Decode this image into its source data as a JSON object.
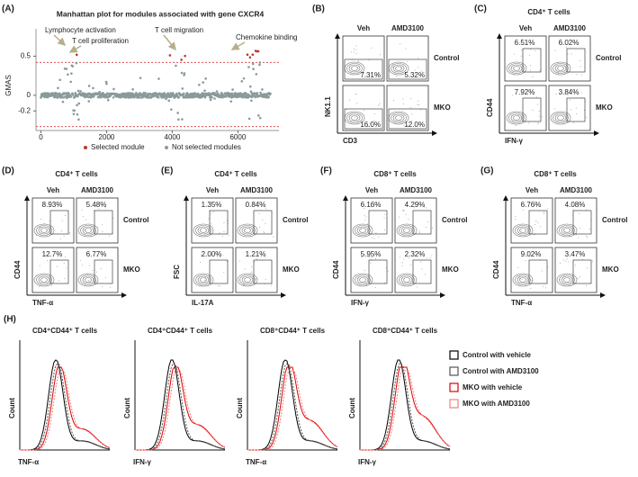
{
  "manhattan": {
    "label": "(A)",
    "title": "Manhattan plot for modules associated with gene CXCR4",
    "y_label": "GMAS",
    "xlim": [
      -150,
      7250
    ],
    "ylim": [
      -0.45,
      0.85
    ],
    "xticks": [
      0,
      2000,
      4000,
      6000
    ],
    "yticks": [
      0.5,
      0,
      -0.2
    ],
    "thresholds": [
      0.42,
      -0.4
    ],
    "annotations": [
      "Lymphocyte activation",
      "T cell proliferation",
      "T cell migration",
      "Chemokine binding"
    ],
    "legend": [
      {
        "name": "Selected module",
        "color": "#c0392b"
      },
      {
        "name": "Not selected modules",
        "color": "#8a9a9a"
      }
    ]
  },
  "flow_panels": [
    {
      "label": "(B)",
      "columns": [
        "Veh",
        "AMD3100"
      ],
      "rows": [
        "Control",
        "MKO"
      ],
      "y_label": "NK1.1",
      "x_label": "CD3",
      "percents": [
        "7.31%",
        "5.32%",
        "16.0%",
        "12.0%"
      ]
    },
    {
      "label": "(C)",
      "title": "CD4⁺ T cells",
      "columns": [
        "Veh",
        "AMD3100"
      ],
      "rows": [
        "Control",
        "MKO"
      ],
      "y_label": "CD44",
      "x_label": "IFN-γ",
      "percents": [
        "6.51%",
        "6.02%",
        "7.92%",
        "3.84%"
      ]
    },
    {
      "label": "(D)",
      "title": "CD4⁺ T cells",
      "columns": [
        "Veh",
        "AMD3100"
      ],
      "rows": [
        "Control",
        "MKO"
      ],
      "y_label": "CD44",
      "x_label": "TNF-α",
      "percents": [
        "8.93%",
        "5.48%",
        "12.7%",
        "6.77%"
      ]
    },
    {
      "label": "(E)",
      "title": "CD4⁺ T cells",
      "columns": [
        "Veh",
        "AMD3100"
      ],
      "rows": [
        "Control",
        "MKO"
      ],
      "y_label": "FSC",
      "x_label": "IL-17A",
      "percents": [
        "1.35%",
        "0.84%",
        "2.00%",
        "1.21%"
      ]
    },
    {
      "label": "(F)",
      "title": "CD8⁺ T cells",
      "columns": [
        "Veh",
        "AMD3100"
      ],
      "rows": [
        "Control",
        "MKO"
      ],
      "y_label": "CD44",
      "x_label": "IFN-γ",
      "percents": [
        "6.16%",
        "4.29%",
        "5.95%",
        "2.32%"
      ]
    },
    {
      "label": "(G)",
      "title": "CD8⁺ T cells",
      "columns": [
        "Veh",
        "AMD3100"
      ],
      "rows": [
        "Control",
        "MKO"
      ],
      "y_label": "CD44",
      "x_label": "TNF-α",
      "percents": [
        "6.76%",
        "4.08%",
        "9.02%",
        "3.47%"
      ]
    }
  ],
  "histograms": {
    "label": "(H)",
    "y_label": "Count",
    "plots": [
      {
        "title": "CD4⁺CD44⁺ T cells",
        "x_label": "TNF-α"
      },
      {
        "title": "CD4⁺CD44⁺ T cells",
        "x_label": "IFN-γ"
      },
      {
        "title": "CD8⁺CD44⁺ T cells",
        "x_label": "TNF-α"
      },
      {
        "title": "CD8⁺CD44⁺ T cells",
        "x_label": "IFN-γ"
      }
    ],
    "legend": [
      {
        "name": "Control with vehicle",
        "color": "#000000"
      },
      {
        "name": "Control with AMD3100",
        "color": "#555555"
      },
      {
        "name": "MKO with vehicle",
        "color": "#e00000"
      },
      {
        "name": "MKO with AMD3100",
        "color": "#f08080"
      }
    ]
  }
}
